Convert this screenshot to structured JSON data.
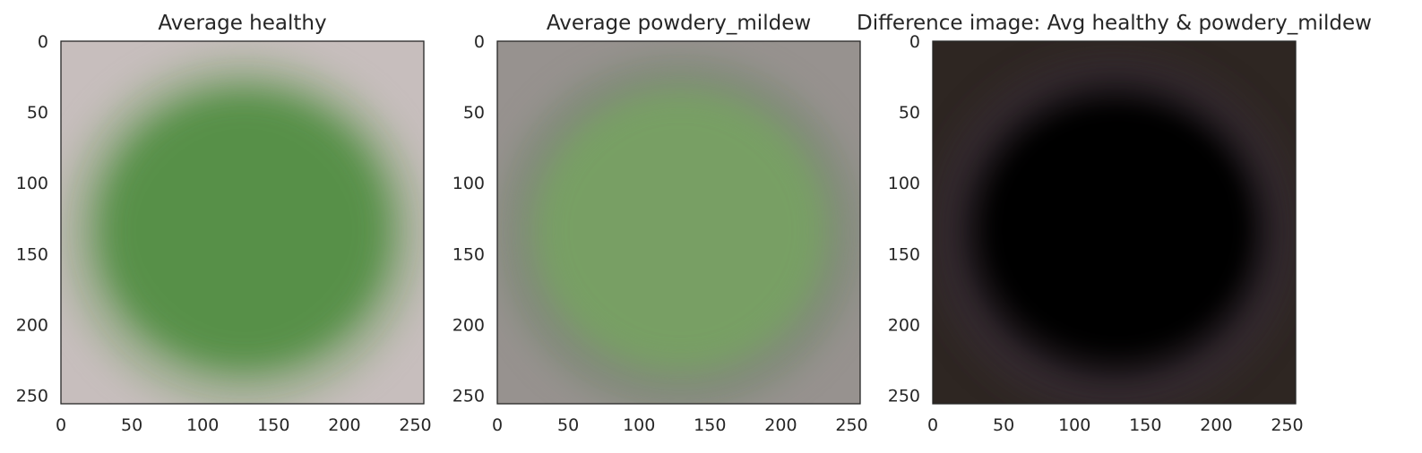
{
  "chart_data": [
    {
      "type": "image",
      "title": "Average healthy",
      "xlim": [
        0,
        256
      ],
      "ylim": [
        256,
        0
      ],
      "xticks": [
        0,
        50,
        100,
        150,
        200,
        250
      ],
      "yticks": [
        0,
        50,
        100,
        150,
        200,
        250
      ],
      "colors": {
        "background": "#c7bebd",
        "blob_core": "#4f8d40",
        "blob_edge": "#8aa57a"
      }
    },
    {
      "type": "image",
      "title": "Average powdery_mildew",
      "xlim": [
        0,
        256
      ],
      "ylim": [
        256,
        0
      ],
      "xticks": [
        0,
        50,
        100,
        150,
        200,
        250
      ],
      "yticks": [
        0,
        50,
        100,
        150,
        200,
        250
      ],
      "colors": {
        "background": "#97928f",
        "blob_core": "#77a262",
        "blob_edge": "#72846c"
      }
    },
    {
      "type": "image",
      "title": "Difference image: Avg healthy & powdery_mildew",
      "xlim": [
        0,
        256
      ],
      "ylim": [
        256,
        0
      ],
      "xticks": [
        0,
        50,
        100,
        150,
        200,
        250
      ],
      "yticks": [
        0,
        50,
        100,
        150,
        200,
        250
      ],
      "colors": {
        "background": "#2e2622",
        "blob_core": "#000000",
        "blob_edge": "#3a2f3d"
      }
    }
  ]
}
